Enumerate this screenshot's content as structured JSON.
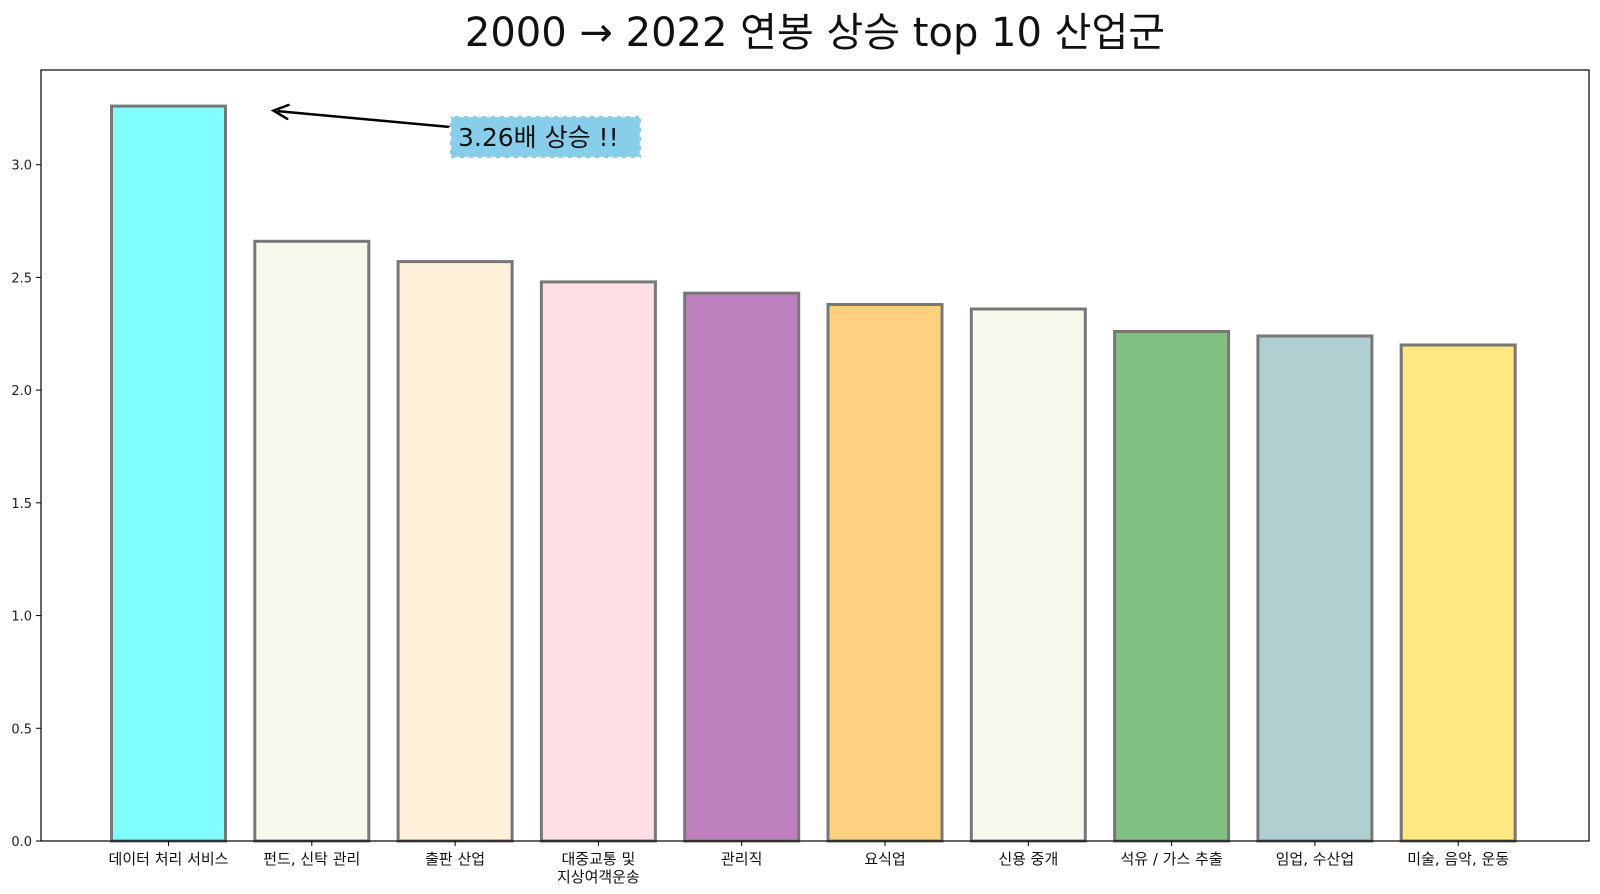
{
  "chart_data": {
    "type": "bar",
    "title": "2000 → 2022 연봉 상승 top 10 산업군",
    "xlabel": "",
    "ylabel": "",
    "categories": [
      [
        "데이터 처리 서비스"
      ],
      [
        "펀드, 신탁 관리"
      ],
      [
        "출판 산업"
      ],
      [
        "대중교통 및",
        "지상여객운송"
      ],
      [
        "관리직"
      ],
      [
        "요식업"
      ],
      [
        "신용 중개"
      ],
      [
        "석유 / 가스 추출"
      ],
      [
        "임업, 수산업"
      ],
      [
        "미술, 음악, 운동"
      ]
    ],
    "values": [
      3.26,
      2.66,
      2.57,
      2.48,
      2.43,
      2.38,
      2.36,
      2.26,
      2.24,
      2.2
    ],
    "colors": [
      "#7FFFFF",
      "#F8F8EC",
      "#FFF0DA",
      "#FFDFE5",
      "#BF80BF",
      "#FFD080",
      "#F8F8EC",
      "#80C080",
      "#B0CFD0",
      "#FFE87F"
    ],
    "edge_color": "#777777",
    "ylim": [
      0,
      3.42
    ],
    "yticks": [
      0.0,
      0.5,
      1.0,
      1.5,
      2.0,
      2.5,
      3.0
    ],
    "ytick_labels": [
      "0.0",
      "0.5",
      "1.0",
      "1.5",
      "2.0",
      "2.5",
      "3.0"
    ],
    "grid": false,
    "legend": "none",
    "annotation": {
      "text": "3.26배 상승 !!",
      "target_category_index": 0,
      "target_value": 3.24,
      "box_color": "#87CEEB"
    }
  }
}
